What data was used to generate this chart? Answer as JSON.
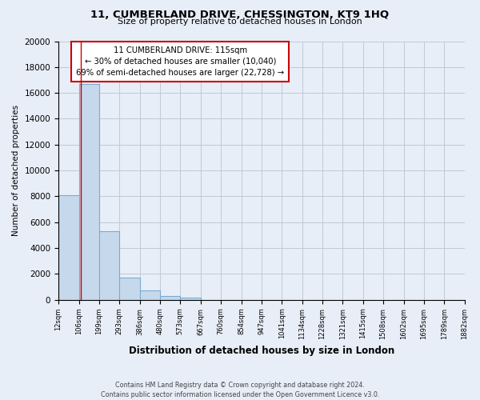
{
  "title": "11, CUMBERLAND DRIVE, CHESSINGTON, KT9 1HQ",
  "subtitle": "Size of property relative to detached houses in London",
  "xlabel": "Distribution of detached houses by size in London",
  "ylabel": "Number of detached properties",
  "bin_labels": [
    "12sqm",
    "106sqm",
    "199sqm",
    "293sqm",
    "386sqm",
    "480sqm",
    "573sqm",
    "667sqm",
    "760sqm",
    "854sqm",
    "947sqm",
    "1041sqm",
    "1134sqm",
    "1228sqm",
    "1321sqm",
    "1415sqm",
    "1508sqm",
    "1602sqm",
    "1695sqm",
    "1789sqm",
    "1882sqm"
  ],
  "bar_heights": [
    8100,
    16700,
    5300,
    1750,
    750,
    300,
    200,
    0,
    0,
    0,
    0,
    0,
    0,
    0,
    0,
    0,
    0,
    0,
    0,
    0
  ],
  "bar_color": "#c6d9ec",
  "bar_edge_color": "#7aabcf",
  "property_line_x": 115,
  "bin_edges": [
    12,
    106,
    199,
    293,
    386,
    480,
    573,
    667,
    760,
    854,
    947,
    1041,
    1134,
    1228,
    1321,
    1415,
    1508,
    1602,
    1695,
    1789,
    1882
  ],
  "ylim": [
    0,
    20000
  ],
  "yticks": [
    0,
    2000,
    4000,
    6000,
    8000,
    10000,
    12000,
    14000,
    16000,
    18000,
    20000
  ],
  "annotation_title": "11 CUMBERLAND DRIVE: 115sqm",
  "annotation_line1": "← 30% of detached houses are smaller (10,040)",
  "annotation_line2": "69% of semi-detached houses are larger (22,728) →",
  "annotation_box_color": "#ffffff",
  "annotation_box_edge": "#cc0000",
  "red_line_color": "#cc0000",
  "footer_line1": "Contains HM Land Registry data © Crown copyright and database right 2024.",
  "footer_line2": "Contains public sector information licensed under the Open Government Licence v3.0.",
  "background_color": "#e8eef8",
  "grid_color": "#c0c8d8"
}
